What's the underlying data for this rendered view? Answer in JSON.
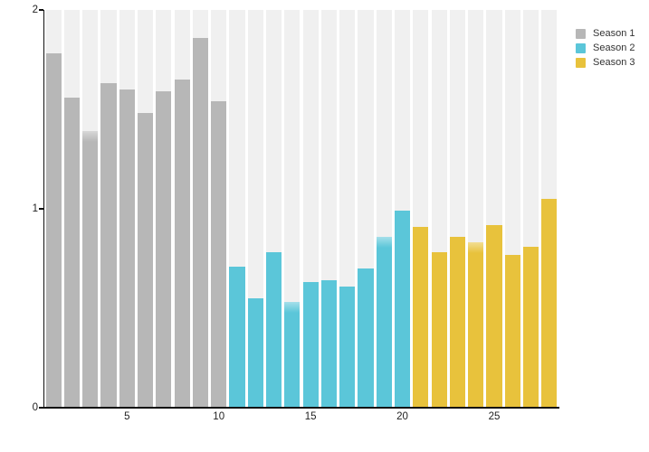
{
  "chart_data": {
    "type": "bar",
    "title": "",
    "x": [
      1,
      2,
      3,
      4,
      5,
      6,
      7,
      8,
      9,
      10,
      11,
      12,
      13,
      14,
      15,
      16,
      17,
      18,
      19,
      20,
      21,
      22,
      23,
      24,
      25,
      26,
      27,
      28
    ],
    "series": [
      {
        "name": "Season 1",
        "color": "#b7b7b7",
        "start_x": 1,
        "values": [
          1.78,
          1.56,
          1.39,
          1.63,
          1.6,
          1.48,
          1.59,
          1.65,
          1.86,
          1.54
        ]
      },
      {
        "name": "Season 2",
        "color": "#5bc6d9",
        "start_x": 11,
        "values": [
          0.71,
          0.55,
          0.78,
          0.53,
          0.63,
          0.64,
          0.61,
          0.7,
          0.86,
          0.99
        ]
      },
      {
        "name": "Season 3",
        "color": "#e8c23c",
        "start_x": 21,
        "values": [
          0.91,
          0.78,
          0.86,
          0.83,
          0.92,
          0.77,
          0.81,
          1.05
        ]
      }
    ],
    "xlabel": "",
    "ylabel": "",
    "ylim": [
      0,
      2
    ],
    "yticks": [
      "0",
      "1",
      "2"
    ],
    "ytick_values": [
      0,
      1,
      2
    ],
    "xticks": [
      "5",
      "10",
      "15",
      "20",
      "25"
    ],
    "xtick_values": [
      5,
      10,
      15,
      20,
      25
    ],
    "grid": false,
    "legend_position": "top-right",
    "background_band_color": "#f0f0f0",
    "axis_color": "#111111",
    "tick_label_color": "#222222",
    "soft_top_bars": [
      3,
      14,
      19,
      24
    ]
  },
  "legend": {
    "items": [
      {
        "label": "Season 1",
        "color": "#b7b7b7"
      },
      {
        "label": "Season 2",
        "color": "#5bc6d9"
      },
      {
        "label": "Season 3",
        "color": "#e8c23c"
      }
    ]
  }
}
